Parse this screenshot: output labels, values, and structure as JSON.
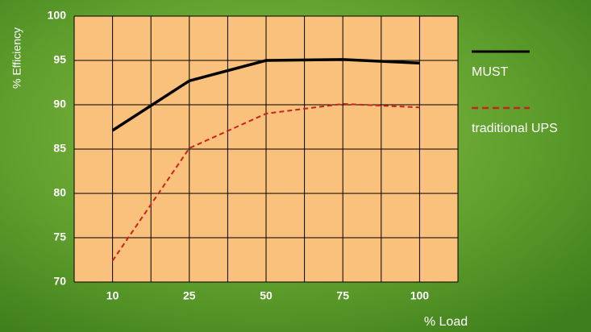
{
  "chart_data": {
    "type": "line",
    "x_label": "% Load",
    "y_label": "% Efficiency",
    "categories": [
      "10",
      "25",
      "50",
      "75",
      "100"
    ],
    "series": [
      {
        "name": "MUST",
        "color": "#000000",
        "line_style": "solid",
        "values": [
          87.1,
          92.7,
          95.0,
          95.1,
          94.7
        ]
      },
      {
        "name": "traditional UPS",
        "color": "#c8231c",
        "line_style": "dashed",
        "values": [
          72.4,
          85.1,
          89.0,
          90.1,
          89.7
        ]
      }
    ],
    "ylim": [
      70,
      100
    ],
    "yticks": [
      70,
      75,
      80,
      85,
      90,
      95,
      100
    ],
    "grid": true,
    "legend_position": "right"
  }
}
